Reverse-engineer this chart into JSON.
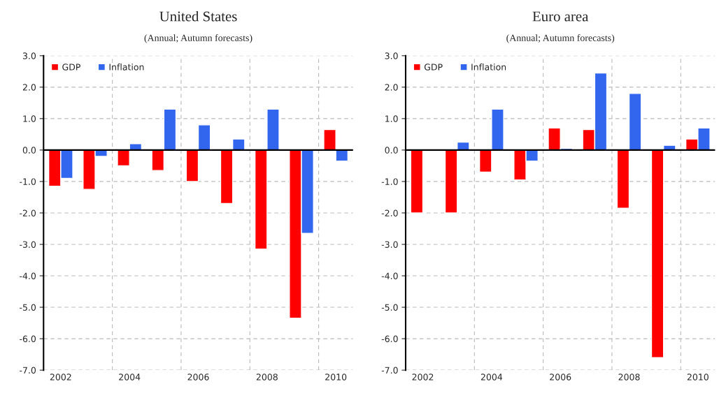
{
  "chart_data": [
    {
      "type": "bar",
      "title": "United States",
      "subtitle": "(Annual; Autumn forecasts)",
      "categories": [
        "2002",
        null,
        "2004",
        null,
        "2006",
        null,
        "2008",
        null,
        "2010"
      ],
      "series": [
        {
          "name": "GDP",
          "color": "#ff0000",
          "values": [
            -1.15,
            -1.25,
            -0.5,
            -0.65,
            -1.0,
            -1.7,
            -3.15,
            -5.35,
            0.65
          ]
        },
        {
          "name": "Inflation",
          "color": "#3366ee",
          "values": [
            -0.9,
            -0.2,
            0.2,
            1.3,
            0.8,
            0.35,
            1.3,
            -2.65,
            -0.35
          ]
        }
      ],
      "ylim": [
        -7.0,
        3.0
      ],
      "yticks": [
        {
          "value": -7,
          "label": "-7.0"
        },
        {
          "value": -6,
          "label": "-6.0"
        },
        {
          "value": -5,
          "label": "-5.0"
        },
        {
          "value": -4,
          "label": "-4.0"
        },
        {
          "value": -3,
          "label": "-3.0"
        },
        {
          "value": -2,
          "label": "-2.0"
        },
        {
          "value": -1,
          "label": "-1.0"
        },
        {
          "value": 0,
          "label": "0.0"
        },
        {
          "value": 1,
          "label": "1.0"
        },
        {
          "value": 2,
          "label": "2.0"
        },
        {
          "value": 3,
          "label": "3.0"
        }
      ],
      "ref_lines": [
        {
          "axis": "y",
          "value": 0,
          "color": "#000000"
        }
      ],
      "grid": true,
      "legend": "top left"
    },
    {
      "type": "bar",
      "title": "Euro area",
      "subtitle": "(Annual; Autumn forecasts)",
      "categories": [
        "2002",
        null,
        "2004",
        null,
        "2006",
        null,
        "2008",
        null,
        "2010"
      ],
      "series": [
        {
          "name": "GDP",
          "color": "#ff0000",
          "values": [
            -2.0,
            -2.0,
            -0.7,
            -0.95,
            0.7,
            0.65,
            -1.85,
            -6.6,
            0.35
          ]
        },
        {
          "name": "Inflation",
          "color": "#3366ee",
          "values": [
            null,
            0.25,
            1.3,
            -0.35,
            0.05,
            2.45,
            1.8,
            0.15,
            0.7
          ]
        }
      ],
      "ylim": [
        -7.0,
        3.0
      ],
      "yticks": [
        {
          "value": -7,
          "label": "-7.0"
        },
        {
          "value": -6,
          "label": "-6.0"
        },
        {
          "value": -5,
          "label": "-5.0"
        },
        {
          "value": -4,
          "label": "-4.0"
        },
        {
          "value": -3,
          "label": "-3.0"
        },
        {
          "value": -2,
          "label": "-2.0"
        },
        {
          "value": -1,
          "label": "-1.0"
        },
        {
          "value": 0,
          "label": "0.0"
        },
        {
          "value": 1,
          "label": "1.0"
        },
        {
          "value": 2,
          "label": "2.0"
        },
        {
          "value": 3,
          "label": "3.0"
        }
      ],
      "ref_lines": [
        {
          "axis": "y",
          "value": 0,
          "color": "#000000"
        }
      ],
      "grid": true,
      "legend": "top left"
    }
  ]
}
